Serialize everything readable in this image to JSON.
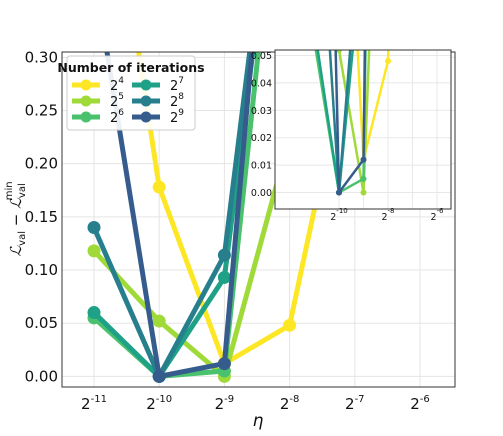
{
  "chart_data": {
    "type": "line",
    "xlabel": "η",
    "ylabel": "ℒval − ℒval min",
    "x_scale": "log2",
    "x_exponents": [
      -11,
      -10,
      -9,
      -8,
      -7,
      -6
    ],
    "x_tick_labels": [
      "-11",
      "-10",
      "-9",
      "-8",
      "-7",
      "-6"
    ],
    "x_tick_base": "2",
    "ylim": [
      -0.01,
      0.305
    ],
    "y_ticks": [
      "0.00",
      "0.05",
      "0.10",
      "0.15",
      "0.20",
      "0.25",
      "0.30"
    ],
    "grid": true,
    "legend": {
      "title": "Number of iterations",
      "placement": "top-left",
      "entries": [
        "4",
        "5",
        "6",
        "7",
        "8",
        "9"
      ]
    },
    "series": [
      {
        "name": "2^4",
        "color": "#fde725",
        "x_exp": [
          -10.5,
          -10,
          -9,
          -8,
          -7.4
        ],
        "y": [
          0.38,
          0.178,
          0.012,
          0.048,
          0.22
        ]
      },
      {
        "name": "2^5",
        "color": "#a0da39",
        "x_exp": [
          -11,
          -10,
          -9,
          -8.2
        ],
        "y": [
          0.118,
          0.052,
          0.0,
          0.18
        ]
      },
      {
        "name": "2^6",
        "color": "#4ac16d",
        "x_exp": [
          -11,
          -10,
          -9,
          -8.35
        ],
        "y": [
          0.055,
          0.0,
          0.005,
          0.38
        ]
      },
      {
        "name": "2^7",
        "color": "#1fa187",
        "x_exp": [
          -11,
          -10,
          -9,
          -8.45
        ],
        "y": [
          0.06,
          0.0,
          0.093,
          0.36
        ]
      },
      {
        "name": "2^8",
        "color": "#277f8e",
        "x_exp": [
          -11,
          -10,
          -9,
          -8.5
        ],
        "y": [
          0.14,
          0.0,
          0.114,
          0.36
        ]
      },
      {
        "name": "2^9",
        "color": "#365c8d",
        "x_exp": [
          -11.05,
          -10,
          -9,
          -8.5
        ],
        "y": [
          0.4,
          0.0,
          0.012,
          0.36
        ]
      }
    ],
    "inset": {
      "ylim": [
        -0.006,
        0.052
      ],
      "y_ticks": [
        "0.00",
        "0.01",
        "0.02",
        "0.03",
        "0.04",
        "0.05"
      ],
      "x_exponents": [
        -10,
        -8,
        -6
      ],
      "x_tick_labels": [
        "-10",
        "-8",
        "-6"
      ],
      "grid": true
    }
  }
}
